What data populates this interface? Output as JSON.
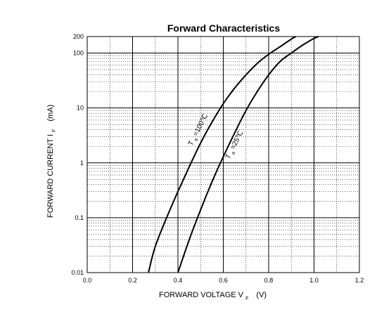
{
  "chart_data": {
    "type": "line",
    "title": "Forward    Characteristics",
    "xlabel": {
      "main": "FORWARD VOLTAGE   V",
      "sub": "F",
      "unit": "(V)"
    },
    "ylabel": {
      "main": "FORWARD CURRENT    I",
      "sub": "F",
      "unit": "(mA)"
    },
    "xlim": [
      0.0,
      1.2
    ],
    "ylim": [
      0.01,
      200
    ],
    "yscale": "log",
    "grid": true,
    "x_ticks": [
      "0.0",
      "0.2",
      "0.4",
      "0.6",
      "0.8",
      "1.0",
      "1.2"
    ],
    "y_ticks": [
      {
        "value": 0.01,
        "label": "0.01"
      },
      {
        "value": 0.1,
        "label": "0.1"
      },
      {
        "value": 1,
        "label": "1"
      },
      {
        "value": 10,
        "label": "10"
      },
      {
        "value": 100,
        "label": "100"
      },
      {
        "value": 200,
        "label": "200"
      }
    ],
    "series": [
      {
        "name": "T=100℃",
        "label": {
          "main": "T",
          "sub": "a",
          "rest": "=100℃"
        },
        "x": [
          0.27,
          0.3,
          0.35,
          0.4,
          0.45,
          0.5,
          0.55,
          0.6,
          0.65,
          0.7,
          0.75,
          0.8,
          0.85,
          0.9,
          0.92
        ],
        "y": [
          0.01,
          0.03,
          0.1,
          0.3,
          0.85,
          2.3,
          5.5,
          12,
          23,
          40,
          65,
          95,
          130,
          180,
          200
        ]
      },
      {
        "name": "T=25℃",
        "label": {
          "main": "T",
          "sub": "a",
          "rest": "=25℃"
        },
        "x": [
          0.4,
          0.45,
          0.5,
          0.55,
          0.6,
          0.65,
          0.7,
          0.75,
          0.8,
          0.85,
          0.9,
          0.95,
          1.0,
          1.02
        ],
        "y": [
          0.01,
          0.04,
          0.14,
          0.45,
          1.3,
          3.5,
          9,
          20,
          40,
          70,
          100,
          140,
          185,
          200
        ]
      }
    ]
  }
}
